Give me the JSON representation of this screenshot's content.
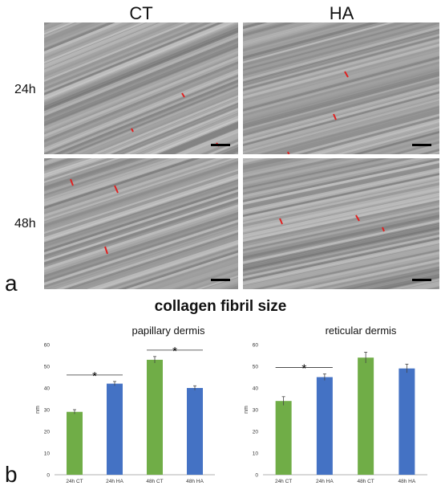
{
  "panel_a": {
    "label": "a",
    "column_headers": [
      "CT",
      "HA"
    ],
    "row_labels": [
      "24h",
      "48h"
    ]
  },
  "panel_b": {
    "label": "b",
    "title": "collagen fibril size"
  },
  "colors": {
    "green": "#70ad47",
    "blue": "#4472c4",
    "marker": "#e02020"
  },
  "chart_data": [
    {
      "type": "bar",
      "title": "papillary dermis",
      "ylabel": "nm",
      "ylim": [
        0,
        60
      ],
      "yticks": [
        0,
        10,
        20,
        30,
        40,
        50,
        60
      ],
      "categories": [
        "24h CT",
        "24h HA",
        "48h CT",
        "48h HA"
      ],
      "values": [
        29,
        42,
        53,
        40
      ],
      "errors": [
        1,
        1,
        1.5,
        1
      ],
      "bar_colors": [
        "#70ad47",
        "#4472c4",
        "#70ad47",
        "#4472c4"
      ],
      "significance": [
        {
          "from": 0,
          "to": 1,
          "label": "*"
        },
        {
          "from": 2,
          "to": 3,
          "label": "*"
        }
      ]
    },
    {
      "type": "bar",
      "title": "reticular dermis",
      "ylabel": "nm",
      "ylim": [
        0,
        60
      ],
      "yticks": [
        0,
        10,
        20,
        30,
        40,
        50,
        60
      ],
      "categories": [
        "24h CT",
        "24h HA",
        "48h CT",
        "48h HA"
      ],
      "values": [
        34,
        45,
        54,
        49
      ],
      "errors": [
        2,
        1.5,
        2.5,
        2
      ],
      "bar_colors": [
        "#70ad47",
        "#4472c4",
        "#70ad47",
        "#4472c4"
      ],
      "significance": [
        {
          "from": 0,
          "to": 1,
          "label": "*"
        }
      ]
    }
  ]
}
